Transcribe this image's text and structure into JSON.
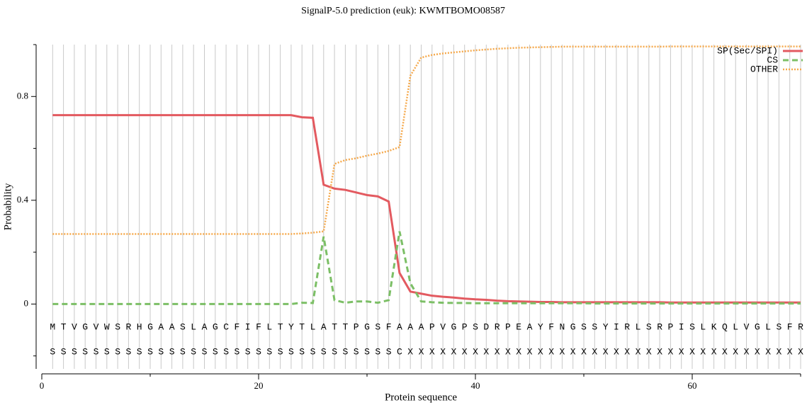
{
  "chart_data": {
    "type": "line",
    "title": "SignalP-5.0 prediction (euk):  KWMTBOMO08587",
    "xlabel": "Protein sequence",
    "ylabel": "Probability",
    "xlim": [
      0,
      70
    ],
    "xticks": [
      0,
      20,
      40,
      60
    ],
    "xticks_minor": [
      10,
      30,
      50,
      70
    ],
    "ylim": [
      -0.25,
      1.0
    ],
    "yticks": [
      0,
      0.4,
      0.8
    ],
    "yticks_minor": [
      -0.2,
      0.2,
      0.6,
      1.0
    ],
    "grid": true,
    "legend": "upper right",
    "x": [
      1,
      2,
      3,
      4,
      5,
      6,
      7,
      8,
      9,
      10,
      11,
      12,
      13,
      14,
      15,
      16,
      17,
      18,
      19,
      20,
      21,
      22,
      23,
      24,
      25,
      26,
      27,
      28,
      29,
      30,
      31,
      32,
      33,
      34,
      35,
      36,
      37,
      38,
      39,
      40,
      41,
      42,
      43,
      44,
      45,
      46,
      47,
      48,
      49,
      50,
      51,
      52,
      53,
      54,
      55,
      56,
      57,
      58,
      59,
      60,
      61,
      62,
      63,
      64,
      65,
      66,
      67,
      68,
      69,
      70
    ],
    "sequence": [
      "M",
      "T",
      "V",
      "G",
      "V",
      "W",
      "S",
      "R",
      "H",
      "G",
      "A",
      "A",
      "S",
      "L",
      "A",
      "G",
      "C",
      "F",
      "I",
      "F",
      "L",
      "T",
      "Y",
      "T",
      "L",
      "A",
      "T",
      "T",
      "P",
      "G",
      "S",
      "F",
      "A",
      "A",
      "A",
      "P",
      "V",
      "G",
      "P",
      "S",
      "D",
      "R",
      "P",
      "E",
      "A",
      "Y",
      "F",
      "N",
      "G",
      "S",
      "S",
      "Y",
      "I",
      "R",
      "L",
      "S",
      "R",
      "P",
      "I",
      "S",
      "L",
      "K",
      "Q",
      "L",
      "V",
      "G",
      "L",
      "S",
      "F",
      "R"
    ],
    "prediction": [
      "S",
      "S",
      "S",
      "S",
      "S",
      "S",
      "S",
      "S",
      "S",
      "S",
      "S",
      "S",
      "S",
      "S",
      "S",
      "S",
      "S",
      "S",
      "S",
      "S",
      "S",
      "S",
      "S",
      "S",
      "S",
      "S",
      "S",
      "S",
      "S",
      "S",
      "S",
      "S",
      "C",
      "X",
      "X",
      "X",
      "X",
      "X",
      "X",
      "X",
      "X",
      "X",
      "X",
      "X",
      "X",
      "X",
      "X",
      "X",
      "X",
      "X",
      "X",
      "X",
      "X",
      "X",
      "X",
      "X",
      "X",
      "X",
      "X",
      "X",
      "X",
      "X",
      "X",
      "X",
      "X",
      "X",
      "X",
      "X",
      "X",
      "X"
    ],
    "series": [
      {
        "name": "SP(Sec/SPI)",
        "color": "#e35a60",
        "style": "solid",
        "values": [
          0.728,
          0.728,
          0.728,
          0.728,
          0.728,
          0.728,
          0.728,
          0.728,
          0.728,
          0.728,
          0.728,
          0.728,
          0.728,
          0.728,
          0.728,
          0.728,
          0.728,
          0.728,
          0.728,
          0.728,
          0.728,
          0.728,
          0.728,
          0.72,
          0.718,
          0.46,
          0.445,
          0.44,
          0.43,
          0.42,
          0.415,
          0.395,
          0.12,
          0.048,
          0.04,
          0.032,
          0.028,
          0.025,
          0.021,
          0.018,
          0.016,
          0.013,
          0.011,
          0.01,
          0.009,
          0.008,
          0.008,
          0.007,
          0.007,
          0.007,
          0.007,
          0.007,
          0.007,
          0.007,
          0.007,
          0.007,
          0.007,
          0.006,
          0.006,
          0.006,
          0.006,
          0.006,
          0.006,
          0.006,
          0.006,
          0.006,
          0.006,
          0.006,
          0.006,
          0.006
        ]
      },
      {
        "name": "CS",
        "color": "#7cbf66",
        "style": "dashed",
        "values": [
          0,
          0,
          0,
          0,
          0,
          0,
          0,
          0,
          0,
          0,
          0,
          0,
          0,
          0,
          0,
          0,
          0,
          0,
          0,
          0,
          0,
          0,
          0,
          0.005,
          0.004,
          0.26,
          0.015,
          0.005,
          0.01,
          0.01,
          0.005,
          0.015,
          0.28,
          0.08,
          0.01,
          0.007,
          0.005,
          0.004,
          0.004,
          0.003,
          0.003,
          0.003,
          0.003,
          0.003,
          0.003,
          0.003,
          0.003,
          0.003,
          0.003,
          0.003,
          0.002,
          0.002,
          0.002,
          0.002,
          0.002,
          0.002,
          0.002,
          0.002,
          0.002,
          0.002,
          0.002,
          0.002,
          0.002,
          0.002,
          0.002,
          0.002,
          0.002,
          0.002,
          0.002,
          0.002
        ]
      },
      {
        "name": "OTHER",
        "color": "#f5a94c",
        "style": "dotted",
        "values": [
          0.27,
          0.27,
          0.27,
          0.27,
          0.27,
          0.27,
          0.27,
          0.27,
          0.27,
          0.27,
          0.27,
          0.27,
          0.27,
          0.27,
          0.27,
          0.27,
          0.27,
          0.27,
          0.27,
          0.27,
          0.27,
          0.27,
          0.27,
          0.272,
          0.275,
          0.28,
          0.54,
          0.555,
          0.562,
          0.572,
          0.58,
          0.59,
          0.605,
          0.88,
          0.95,
          0.96,
          0.966,
          0.97,
          0.974,
          0.978,
          0.981,
          0.984,
          0.986,
          0.988,
          0.989,
          0.99,
          0.991,
          0.992,
          0.992,
          0.992,
          0.992,
          0.992,
          0.992,
          0.992,
          0.992,
          0.992,
          0.992,
          0.993,
          0.993,
          0.993,
          0.993,
          0.993,
          0.993,
          0.993,
          0.993,
          0.993,
          0.993,
          0.993,
          0.993,
          0.993
        ]
      }
    ]
  }
}
